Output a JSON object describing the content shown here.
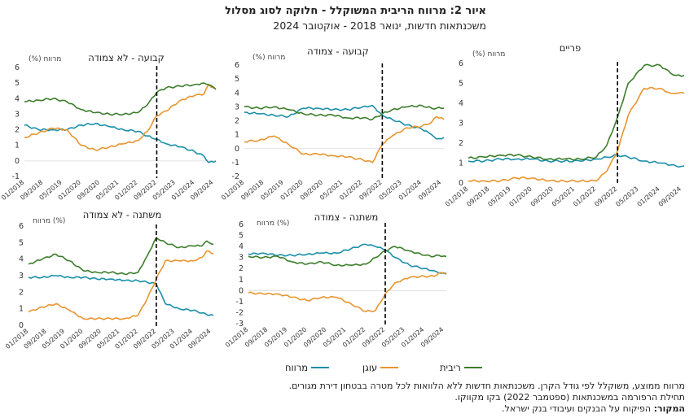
{
  "title": "איור 2: מרווח הריבית המשוקלל - חלוקה לסוג מסלול",
  "subtitle": "משכנתאות חדשות, ינואר 2018 - אוקטובר 2024",
  "legend": {
    "spread": "מרווח",
    "anchor": "עוגן",
    "rate": "ריבית"
  },
  "notes": {
    "line1": "מרווח ממוצע, משוקלל לפי גודל הקרן. משכנתאות חדשות ללא הלוואות לכל מטרה בבטחון דירת מגורים.",
    "line2": "תחילת הרפורמה במשכנתאות (ספטמבר 2022) בקו מקווקו.",
    "source_label": "המקור:",
    "source_text": "הפיקוח על הבנקים ועיבודי בנק ישראל."
  },
  "colors": {
    "spread": "#1a8fa8",
    "anchor": "#e8952f",
    "rate": "#3c7d2c",
    "reform_line": "#000000"
  },
  "chart_data": [
    {
      "type": "line",
      "title": "קבועה - לא צמודה",
      "ylabel": "(%) מרווח",
      "ylim": [
        -1,
        6
      ],
      "yticks": [
        -1,
        0,
        1,
        2,
        3,
        4,
        5,
        6
      ],
      "x_ticks": [
        "01/2018",
        "09/2018",
        "05/2019",
        "01/2020",
        "09/2020",
        "05/2021",
        "01/2022",
        "09/2022",
        "05/2023",
        "01/2024",
        "09/2024"
      ],
      "reform": "09/2022",
      "x": [
        "01/2018",
        "07/2018",
        "01/2019",
        "07/2019",
        "01/2020",
        "07/2020",
        "01/2021",
        "07/2021",
        "01/2022",
        "05/2022",
        "09/2022",
        "01/2023",
        "07/2023",
        "01/2024",
        "05/2024",
        "07/2024",
        "10/2024"
      ],
      "series": [
        {
          "name": "מרווח",
          "key": "spread",
          "values": [
            2.3,
            2.0,
            2.0,
            2.0,
            2.3,
            2.4,
            2.2,
            2.0,
            1.9,
            1.6,
            1.4,
            1.1,
            0.9,
            0.6,
            0.3,
            -0.1,
            0.0
          ]
        },
        {
          "name": "עוגן",
          "key": "anchor",
          "values": [
            1.5,
            1.8,
            2.1,
            2.0,
            1.0,
            0.7,
            0.9,
            1.1,
            1.3,
            1.9,
            2.9,
            3.2,
            3.9,
            4.2,
            4.3,
            4.9,
            4.6
          ]
        },
        {
          "name": "ריבית",
          "key": "rate",
          "values": [
            3.8,
            3.9,
            4.0,
            3.8,
            3.3,
            3.1,
            3.0,
            3.0,
            3.1,
            3.6,
            4.4,
            4.7,
            4.8,
            4.9,
            5.0,
            4.9,
            4.6
          ]
        }
      ]
    },
    {
      "type": "line",
      "title": "קבועה - צמודה",
      "ylabel": "(%) מרווח",
      "ylim": [
        -2,
        6
      ],
      "yticks": [
        -2,
        -1,
        0,
        1,
        2,
        3,
        4,
        5,
        6
      ],
      "x_ticks": [
        "01/2018",
        "09/2018",
        "05/2019",
        "01/2020",
        "09/2020",
        "05/2021",
        "01/2022",
        "09/2022",
        "05/2023",
        "01/2024",
        "09/2024"
      ],
      "reform": "09/2022",
      "x": [
        "01/2018",
        "07/2018",
        "01/2019",
        "07/2019",
        "01/2020",
        "07/2020",
        "01/2021",
        "07/2021",
        "01/2022",
        "05/2022",
        "09/2022",
        "01/2023",
        "07/2023",
        "01/2024",
        "05/2024",
        "07/2024",
        "10/2024"
      ],
      "series": [
        {
          "name": "מרווח",
          "key": "spread",
          "values": [
            2.6,
            2.5,
            2.4,
            2.3,
            2.9,
            2.9,
            2.8,
            2.8,
            3.0,
            3.1,
            2.4,
            2.1,
            1.7,
            1.4,
            1.0,
            0.7,
            0.8
          ]
        },
        {
          "name": "עוגן",
          "key": "anchor",
          "values": [
            0.5,
            0.6,
            0.9,
            0.3,
            -0.4,
            -0.4,
            -0.5,
            -0.6,
            -0.8,
            -1.0,
            0.3,
            0.9,
            1.5,
            1.6,
            1.9,
            2.3,
            2.1
          ]
        },
        {
          "name": "ריבית",
          "key": "rate",
          "values": [
            3.0,
            2.9,
            3.0,
            2.8,
            2.5,
            2.4,
            2.4,
            2.2,
            2.2,
            2.1,
            2.5,
            2.8,
            3.0,
            3.1,
            2.9,
            2.9,
            2.9
          ]
        }
      ]
    },
    {
      "type": "line",
      "title": "פריים",
      "ylabel": "(%) מרווח",
      "ylim": [
        0,
        6
      ],
      "yticks": [
        0,
        1,
        2,
        3,
        4,
        5,
        6
      ],
      "x_ticks": [
        "01/2018",
        "09/2018",
        "05/2019",
        "01/2020",
        "09/2020",
        "05/2021",
        "01/2022",
        "09/2022",
        "05/2023",
        "01/2024",
        "09/2024"
      ],
      "reform": "09/2022",
      "x": [
        "01/2018",
        "07/2018",
        "01/2019",
        "07/2019",
        "01/2020",
        "07/2020",
        "01/2021",
        "07/2021",
        "01/2022",
        "05/2022",
        "09/2022",
        "01/2023",
        "07/2023",
        "01/2024",
        "05/2024",
        "07/2024",
        "10/2024"
      ],
      "series": [
        {
          "name": "מרווח",
          "key": "spread",
          "values": [
            1.1,
            1.1,
            1.2,
            1.2,
            1.2,
            1.1,
            1.1,
            1.1,
            1.2,
            1.3,
            1.4,
            1.3,
            1.1,
            1.0,
            0.9,
            0.85,
            0.85
          ]
        },
        {
          "name": "עוגן",
          "key": "anchor",
          "values": [
            0.1,
            0.1,
            0.1,
            0.25,
            0.25,
            0.1,
            0.1,
            0.1,
            0.1,
            0.6,
            1.6,
            3.4,
            4.75,
            4.75,
            4.5,
            4.5,
            4.5
          ]
        },
        {
          "name": "ריבית",
          "key": "rate",
          "values": [
            1.25,
            1.3,
            1.4,
            1.4,
            1.3,
            1.2,
            1.2,
            1.2,
            1.3,
            1.9,
            3.3,
            5.0,
            5.9,
            5.9,
            5.5,
            5.4,
            5.4
          ]
        }
      ]
    },
    {
      "type": "line",
      "title": "משתנה - לא צמודה",
      "ylabel": "מרווח (%)",
      "ylim": [
        0,
        6
      ],
      "yticks": [
        0,
        1,
        2,
        3,
        4,
        5,
        6
      ],
      "x_ticks": [
        "01/2018",
        "09/2018",
        "05/2019",
        "01/2020",
        "09/2020",
        "05/2021",
        "01/2022",
        "09/2022",
        "05/2023",
        "01/2024",
        "09/2024"
      ],
      "reform": "09/2022",
      "x": [
        "01/2018",
        "07/2018",
        "01/2019",
        "07/2019",
        "01/2020",
        "07/2020",
        "01/2021",
        "07/2021",
        "01/2022",
        "05/2022",
        "09/2022",
        "01/2023",
        "07/2023",
        "01/2024",
        "05/2024",
        "07/2024",
        "10/2024"
      ],
      "series": [
        {
          "name": "מרווח",
          "key": "spread",
          "values": [
            2.9,
            2.9,
            3.0,
            2.9,
            2.9,
            2.8,
            2.8,
            2.7,
            2.7,
            2.6,
            2.5,
            1.3,
            1.0,
            0.9,
            0.75,
            0.65,
            0.6
          ]
        },
        {
          "name": "עוגן",
          "key": "anchor",
          "values": [
            0.8,
            1.1,
            1.3,
            0.9,
            0.4,
            0.4,
            0.4,
            0.4,
            0.6,
            1.6,
            2.8,
            3.9,
            3.9,
            3.9,
            4.1,
            4.5,
            4.3
          ]
        },
        {
          "name": "ריבית",
          "key": "rate",
          "values": [
            3.7,
            4.0,
            4.3,
            3.9,
            3.3,
            3.2,
            3.2,
            3.1,
            3.2,
            4.2,
            5.3,
            5.0,
            4.7,
            4.8,
            4.8,
            5.1,
            4.9
          ]
        }
      ]
    },
    {
      "type": "line",
      "title": "משתנה - צמודה",
      "ylabel": "מרווח (%)",
      "ylim": [
        -3,
        6
      ],
      "yticks": [
        -3,
        -2,
        -1,
        0,
        1,
        2,
        3,
        4,
        5,
        6
      ],
      "x_ticks": [
        "01/2018",
        "09/2018",
        "05/2019",
        "01/2020",
        "09/2020",
        "05/2021",
        "01/2022",
        "09/2022",
        "05/2023",
        "01/2024",
        "09/2024"
      ],
      "reform": "09/2022",
      "x": [
        "01/2018",
        "07/2018",
        "01/2019",
        "07/2019",
        "01/2020",
        "07/2020",
        "01/2021",
        "07/2021",
        "01/2022",
        "05/2022",
        "09/2022",
        "01/2023",
        "07/2023",
        "01/2024",
        "05/2024",
        "07/2024",
        "10/2024"
      ],
      "series": [
        {
          "name": "מרווח",
          "key": "spread",
          "values": [
            3.3,
            3.4,
            3.2,
            3.2,
            3.3,
            3.4,
            3.4,
            3.8,
            4.2,
            4.0,
            3.7,
            3.0,
            2.3,
            2.0,
            1.8,
            1.6,
            1.5
          ]
        },
        {
          "name": "עוגן",
          "key": "anchor",
          "values": [
            -0.2,
            -0.3,
            -0.3,
            -0.6,
            -0.9,
            -0.6,
            -0.6,
            -1.2,
            -1.9,
            -1.8,
            -0.3,
            0.7,
            1.2,
            1.3,
            1.3,
            1.6,
            1.6
          ]
        },
        {
          "name": "ריבית",
          "key": "rate",
          "values": [
            3.1,
            3.0,
            3.1,
            2.6,
            2.4,
            2.6,
            2.3,
            2.3,
            2.4,
            3.0,
            3.6,
            4.0,
            3.6,
            3.2,
            3.1,
            3.2,
            3.1
          ]
        }
      ]
    }
  ]
}
